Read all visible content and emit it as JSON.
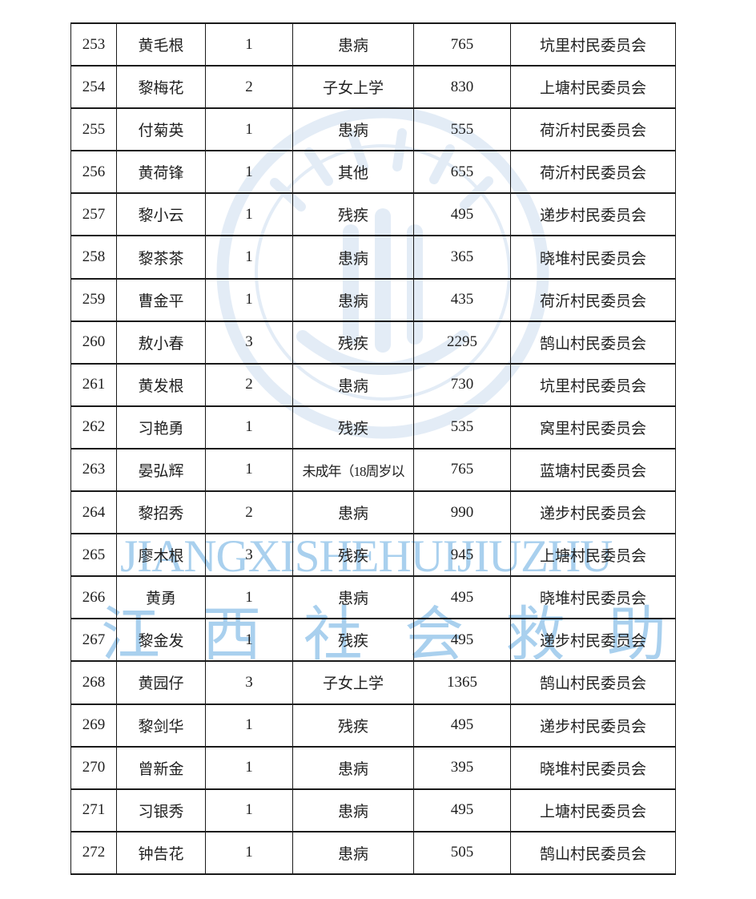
{
  "watermark": {
    "latin_text": "JIANGXISHEHUIJIUZHU",
    "chinese_chars": [
      "江",
      "西",
      "社",
      "会",
      "救",
      "助"
    ],
    "text_color": "#a9d0ee",
    "emblem_color": "#e3ecf6",
    "emblem_name": "jiangxi-social-assistance-seal"
  },
  "table": {
    "border_color": "#1a1a1a",
    "text_color": "#1f1f1f",
    "rows": [
      {
        "no": "253",
        "name": "黄毛根",
        "count": "1",
        "reason": "患病",
        "amount": "765",
        "village": "坑里村民委员会"
      },
      {
        "no": "254",
        "name": "黎梅花",
        "count": "2",
        "reason": "子女上学",
        "amount": "830",
        "village": "上塘村民委员会"
      },
      {
        "no": "255",
        "name": "付菊英",
        "count": "1",
        "reason": "患病",
        "amount": "555",
        "village": "荷沂村民委员会"
      },
      {
        "no": "256",
        "name": "黄荷锋",
        "count": "1",
        "reason": "其他",
        "amount": "655",
        "village": "荷沂村民委员会"
      },
      {
        "no": "257",
        "name": "黎小云",
        "count": "1",
        "reason": "残疾",
        "amount": "495",
        "village": "递步村民委员会"
      },
      {
        "no": "258",
        "name": "黎茶茶",
        "count": "1",
        "reason": "患病",
        "amount": "365",
        "village": "晓堆村民委员会"
      },
      {
        "no": "259",
        "name": "曹金平",
        "count": "1",
        "reason": "患病",
        "amount": "435",
        "village": "荷沂村民委员会"
      },
      {
        "no": "260",
        "name": "敖小春",
        "count": "3",
        "reason": "残疾",
        "amount": "2295",
        "village": "鹄山村民委员会"
      },
      {
        "no": "261",
        "name": "黄发根",
        "count": "2",
        "reason": "患病",
        "amount": "730",
        "village": "坑里村民委员会"
      },
      {
        "no": "262",
        "name": "习艳勇",
        "count": "1",
        "reason": "残疾",
        "amount": "535",
        "village": "窝里村民委员会"
      },
      {
        "no": "263",
        "name": "晏弘辉",
        "count": "1",
        "reason": "未成年（18周岁以",
        "amount": "765",
        "village": "蓝塘村民委员会"
      },
      {
        "no": "264",
        "name": "黎招秀",
        "count": "2",
        "reason": "患病",
        "amount": "990",
        "village": "递步村民委员会"
      },
      {
        "no": "265",
        "name": "廖木根",
        "count": "3",
        "reason": "残疾",
        "amount": "945",
        "village": "上塘村民委员会"
      },
      {
        "no": "266",
        "name": "黄勇",
        "count": "1",
        "reason": "患病",
        "amount": "495",
        "village": "晓堆村民委员会"
      },
      {
        "no": "267",
        "name": "黎金发",
        "count": "1",
        "reason": "残疾",
        "amount": "495",
        "village": "递步村民委员会"
      },
      {
        "no": "268",
        "name": "黄园仔",
        "count": "3",
        "reason": "子女上学",
        "amount": "1365",
        "village": "鹄山村民委员会"
      },
      {
        "no": "269",
        "name": "黎剑华",
        "count": "1",
        "reason": "残疾",
        "amount": "495",
        "village": "递步村民委员会"
      },
      {
        "no": "270",
        "name": "曾新金",
        "count": "1",
        "reason": "患病",
        "amount": "395",
        "village": "晓堆村民委员会"
      },
      {
        "no": "271",
        "name": "习银秀",
        "count": "1",
        "reason": "患病",
        "amount": "495",
        "village": "上塘村民委员会"
      },
      {
        "no": "272",
        "name": "钟告花",
        "count": "1",
        "reason": "患病",
        "amount": "505",
        "village": "鹄山村民委员会"
      }
    ]
  }
}
